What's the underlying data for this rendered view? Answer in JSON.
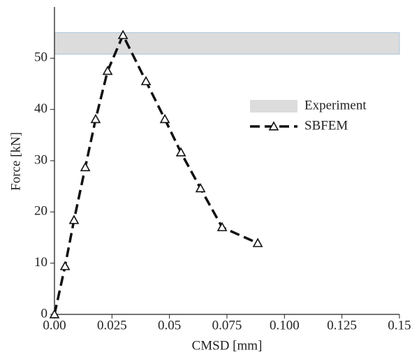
{
  "chart_data": {
    "type": "line",
    "xlabel": "CMSD [mm]",
    "ylabel": "Force [kN]",
    "xlim": [
      0,
      0.15
    ],
    "ylim": [
      0,
      60
    ],
    "xticks": [
      {
        "value": 0,
        "label": "0.00"
      },
      0.025,
      0.05,
      0.075,
      {
        "value": 0.1,
        "label": "0.100"
      },
      0.125,
      0.15
    ],
    "yticks": [
      0,
      10,
      20,
      30,
      40,
      50
    ],
    "band": {
      "name": "Experiment",
      "color": "#dcdcdc",
      "edge": "#a9c4dd",
      "range": [
        50.8,
        55
      ]
    },
    "series": [
      {
        "name": "SBFEM",
        "color": "#111111",
        "dashed": true,
        "marker": "triangle",
        "x": [
          0,
          0.0046,
          0.0085,
          0.0134,
          0.0179,
          0.0231,
          0.0298,
          0.0398,
          0.048,
          0.055,
          0.0635,
          0.0729,
          0.0884
        ],
        "values": [
          0,
          9.4,
          18.4,
          28.7,
          38.1,
          47.5,
          54.5,
          45.5,
          38.1,
          31.6,
          24.6,
          17.0,
          13.9
        ]
      }
    ],
    "legend": "right"
  }
}
